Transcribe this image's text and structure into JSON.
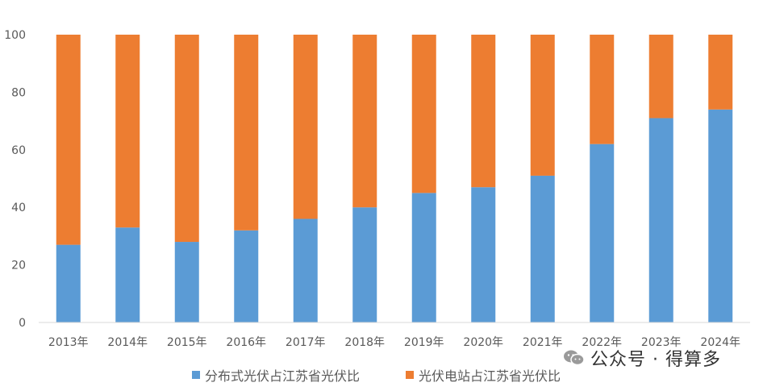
{
  "chart_data": {
    "type": "bar",
    "stacked": true,
    "categories": [
      "2013年",
      "2014年",
      "2015年",
      "2016年",
      "2017年",
      "2018年",
      "2019年",
      "2020年",
      "2021年",
      "2022年",
      "2023年",
      "2024年"
    ],
    "series": [
      {
        "name": "分布式光伏占江苏省光伏比",
        "color": "#5B9BD5",
        "values": [
          27,
          33,
          28,
          32,
          36,
          40,
          45,
          47,
          51,
          62,
          71,
          74
        ]
      },
      {
        "name": "光伏电站占江苏省光伏比",
        "color": "#ED7D31",
        "values": [
          73,
          67,
          72,
          68,
          64,
          60,
          55,
          53,
          49,
          38,
          29,
          26
        ]
      }
    ],
    "ylim": [
      0,
      100
    ],
    "yticks": [
      0,
      20,
      40,
      60,
      80,
      100
    ],
    "grid": false,
    "legend_position": "bottom"
  },
  "watermark": {
    "text": "公众号 · 得算多",
    "icon": "wechat-icon"
  }
}
